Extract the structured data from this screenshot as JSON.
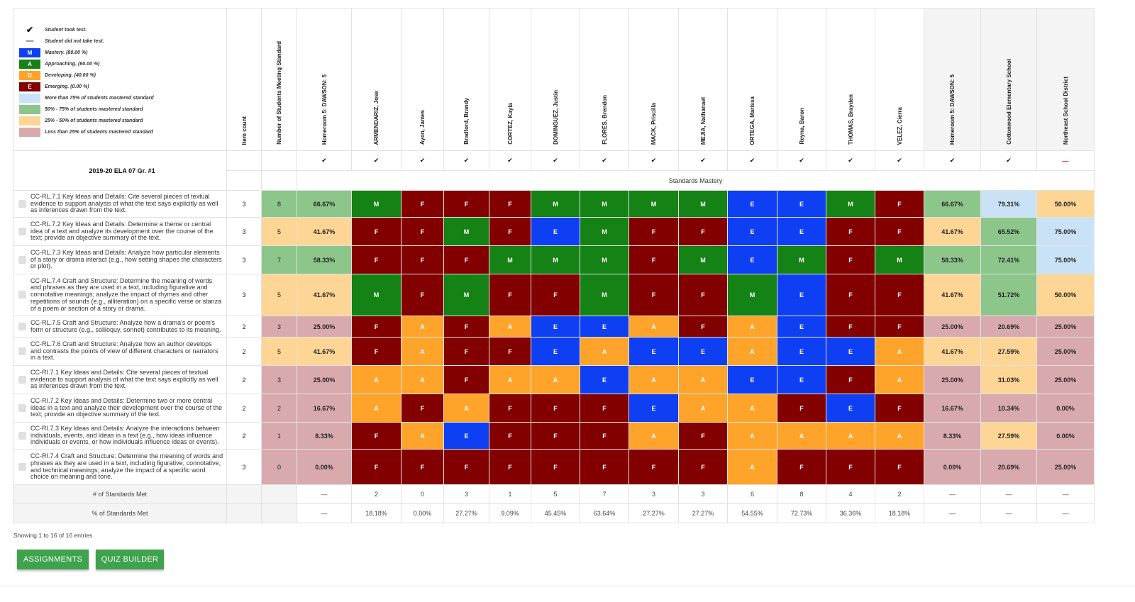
{
  "legend": [
    {
      "glyph": "✔",
      "label": "Student took test.",
      "type": "glyph"
    },
    {
      "glyph": "—",
      "label": "Student did not take test.",
      "type": "dash"
    },
    {
      "glyph": "M",
      "label": "Mastery.  (80.00 %)",
      "color": "#0f3ff2"
    },
    {
      "glyph": "A",
      "label": "Approaching.  (60.00 %)",
      "color": "#148214"
    },
    {
      "glyph": "D",
      "label": "Developing.  (40.00 %)",
      "color": "#ffa42b"
    },
    {
      "glyph": "E",
      "label": "Emerging.  (0.00 %)",
      "color": "#820000"
    },
    {
      "glyph": "",
      "label": "More than 75% of students mastered standard",
      "color": "#c9e2f5"
    },
    {
      "glyph": "",
      "label": "50% - 75% of students mastered standard",
      "color": "#8cc68a"
    },
    {
      "glyph": "",
      "label": "25% - 50% of students mastered standard",
      "color": "#fdd594"
    },
    {
      "glyph": "",
      "label": "Less than 25% of students mastered standard",
      "color": "#d9aaad"
    }
  ],
  "fixed_headers": [
    "Item count",
    "Number of Students Meeting Standard",
    "Homeroom 5: DAWSON: 5"
  ],
  "students": [
    "ARMENDARIZ, Jose",
    "Ayon, James",
    "Bradford, Brandy",
    "CORTEZ, Kayla",
    "DOMINGUEZ, Justin",
    "FLORES, Brendon",
    "MACK, Priscilla",
    "MEJIA, Nathanael",
    "ORTEGA, Marissa",
    "Reyna, Baron",
    "THOMAS, Brayden",
    "VELEZ, Cierra"
  ],
  "rollups": [
    "Homeroom 5: DAWSON: 5",
    "Cottonwood Elementary School",
    "Northeast School District"
  ],
  "took_test": {
    "check": "✔",
    "dash": "—",
    "row": [
      "",
      "",
      "check",
      "check",
      "check",
      "check",
      "check",
      "check",
      "check",
      "check",
      "check",
      "check",
      "check",
      "check",
      "check",
      "check",
      "check",
      "dash"
    ]
  },
  "assessment_title": "2019-20  ELA 07 Gr. #1",
  "standards_mastery_label": "Standards Mastery",
  "grade_colors": {
    "M": "#148214",
    "F": "#820000",
    "E": "#0f3ff2",
    "A": "#ffa42b"
  },
  "band_colors": {
    "blue": "#c9e2f5",
    "green": "#8cc68a",
    "orange": "#fdd594",
    "pink": "#d9aaad"
  },
  "rows": [
    {
      "standard": "CC-RL.7.1 Key Ideas and Details: Cite several pieces of textual evidence to support analysis of what the text says explicitly as well as inferences drawn from the text.",
      "items": "3",
      "meeting": "8",
      "homeroom": "66.67%",
      "grades": [
        "M",
        "F",
        "F",
        "F",
        "M",
        "M",
        "M",
        "M",
        "E",
        "E",
        "M",
        "F"
      ],
      "rollup": [
        "66.67%",
        "79.31%",
        "50.00%"
      ],
      "band": "green",
      "rollup_band": [
        "green",
        "blue",
        "orange"
      ],
      "h": 38
    },
    {
      "standard": "CC-RL.7.2 Key Ideas and Details: Determine a theme or central idea of a text and analyze its development over the course of the text; provide an objective summary of the text.",
      "items": "3",
      "meeting": "5",
      "homeroom": "41.67%",
      "grades": [
        "F",
        "F",
        "M",
        "F",
        "E",
        "M",
        "F",
        "F",
        "E",
        "E",
        "F",
        "F"
      ],
      "rollup": [
        "41.67%",
        "65.52%",
        "75.00%"
      ],
      "band": "orange",
      "rollup_band": [
        "orange",
        "green",
        "blue"
      ],
      "h": 40
    },
    {
      "standard": "CC-RL.7.3 Key Ideas and Details: Analyze how particular elements of a story or drama interact (e.g., how setting shapes the characters or plot).",
      "items": "3",
      "meeting": "7",
      "homeroom": "58.33%",
      "grades": [
        "F",
        "F",
        "F",
        "M",
        "M",
        "M",
        "F",
        "M",
        "E",
        "M",
        "F",
        "M"
      ],
      "rollup": [
        "58.33%",
        "72.41%",
        "75.00%"
      ],
      "band": "green",
      "rollup_band": [
        "green",
        "green",
        "blue"
      ],
      "h": 40
    },
    {
      "standard": "CC-RL.7.4 Craft and Structure: Determine the meaning of words and phrases as they are used in a text, including figurative and connotative meanings; analyze the impact of rhymes and other repetitions of sounds (e.g., alliteration) on a specific verse or stanza of a poem or section of a story or drama.",
      "items": "3",
      "meeting": "5",
      "homeroom": "41.67%",
      "grades": [
        "M",
        "F",
        "M",
        "F",
        "F",
        "M",
        "F",
        "F",
        "M",
        "E",
        "F",
        "F"
      ],
      "rollup": [
        "41.67%",
        "51.72%",
        "50.00%"
      ],
      "band": "orange",
      "rollup_band": [
        "orange",
        "green",
        "orange"
      ],
      "h": 59
    },
    {
      "standard": "CC-RL.7.5 Craft and Structure: Analyze how a drama's or poem's form or structure (e.g., soliloquy, sonnet) contributes to its meaning.",
      "items": "2",
      "meeting": "3",
      "homeroom": "25.00%",
      "grades": [
        "F",
        "A",
        "F",
        "A",
        "E",
        "E",
        "A",
        "F",
        "A",
        "E",
        "F",
        "F"
      ],
      "rollup": [
        "25.00%",
        "20.69%",
        "25.00%"
      ],
      "band": "pink",
      "rollup_band": [
        "pink",
        "pink",
        "pink"
      ],
      "h": 30
    },
    {
      "standard": "CC-RL.7.6 Craft and Structure: Analyze how an author develops and contrasts the points of view of different characters or narrators in a text.",
      "items": "2",
      "meeting": "5",
      "homeroom": "41.67%",
      "grades": [
        "F",
        "A",
        "F",
        "F",
        "E",
        "A",
        "E",
        "E",
        "A",
        "E",
        "E",
        "A"
      ],
      "rollup": [
        "41.67%",
        "27.59%",
        "25.00%"
      ],
      "band": "orange",
      "rollup_band": [
        "orange",
        "orange",
        "pink"
      ],
      "h": 40
    },
    {
      "standard": "CC-RI.7.1 Key Ideas and Details: Cite several pieces of textual evidence to support analysis of what the text says explicitly as well as inferences drawn from the text.",
      "items": "2",
      "meeting": "3",
      "homeroom": "25.00%",
      "grades": [
        "A",
        "A",
        "F",
        "A",
        "A",
        "E",
        "A",
        "A",
        "E",
        "E",
        "F",
        "A"
      ],
      "rollup": [
        "25.00%",
        "31.03%",
        "25.00%"
      ],
      "band": "pink",
      "rollup_band": [
        "pink",
        "orange",
        "pink"
      ],
      "h": 40
    },
    {
      "standard": "CC-RI.7.2 Key Ideas and Details: Determine two or more central ideas in a text and analyze their development over the course of the text; provide an objective summary of the text.",
      "items": "2",
      "meeting": "2",
      "homeroom": "16.67%",
      "grades": [
        "A",
        "F",
        "A",
        "F",
        "F",
        "F",
        "E",
        "A",
        "A",
        "F",
        "E",
        "F"
      ],
      "rollup": [
        "16.67%",
        "10.34%",
        "0.00%"
      ],
      "band": "pink",
      "rollup_band": [
        "pink",
        "pink",
        "pink"
      ],
      "h": 40
    },
    {
      "standard": "CC-RI.7.3 Key Ideas and Details: Analyze the interactions between individuals, events, and ideas in a text (e.g., how ideas influence individuals or events, or how individuals influence ideas or events).",
      "items": "2",
      "meeting": "1",
      "homeroom": "8.33%",
      "grades": [
        "F",
        "A",
        "E",
        "F",
        "F",
        "F",
        "A",
        "F",
        "A",
        "A",
        "A",
        "A"
      ],
      "rollup": [
        "8.33%",
        "27.59%",
        "0.00%"
      ],
      "band": "pink",
      "rollup_band": [
        "pink",
        "orange",
        "pink"
      ],
      "h": 38
    },
    {
      "standard": "CC-RI.7.4 Craft and Structure: Determine the meaning of words and phrases as they are used in a text, including figurative, connotative, and technical meanings; analyze the impact of a specific word choice on meaning and tone.",
      "items": "3",
      "meeting": "0",
      "homeroom": "0.00%",
      "grades": [
        "F",
        "F",
        "F",
        "F",
        "F",
        "F",
        "F",
        "F",
        "A",
        "F",
        "F",
        "F"
      ],
      "rollup": [
        "0.00%",
        "20.69%",
        "25.00%"
      ],
      "band": "pink",
      "rollup_band": [
        "pink",
        "pink",
        "pink"
      ],
      "h": 50
    }
  ],
  "footer": [
    {
      "label": "# of Standards Met",
      "homeroom": "—",
      "students": [
        "2",
        "0",
        "3",
        "1",
        "5",
        "7",
        "3",
        "3",
        "6",
        "8",
        "4",
        "2"
      ],
      "rollup": [
        "—",
        "—",
        "—"
      ]
    },
    {
      "label": "% of Standards Met",
      "homeroom": "—",
      "students": [
        "18.18%",
        "0.00%",
        "27.27%",
        "9.09%",
        "45.45%",
        "63.64%",
        "27.27%",
        "27.27%",
        "54.55%",
        "72.73%",
        "36.36%",
        "18.18%"
      ],
      "rollup": [
        "—",
        "—",
        "—"
      ]
    }
  ],
  "entries_text": "Showing 1 to 16 of 16 entries",
  "buttons": {
    "assignments": "ASSIGNMENTS",
    "quiz_builder": "QUIZ BUILDER"
  }
}
